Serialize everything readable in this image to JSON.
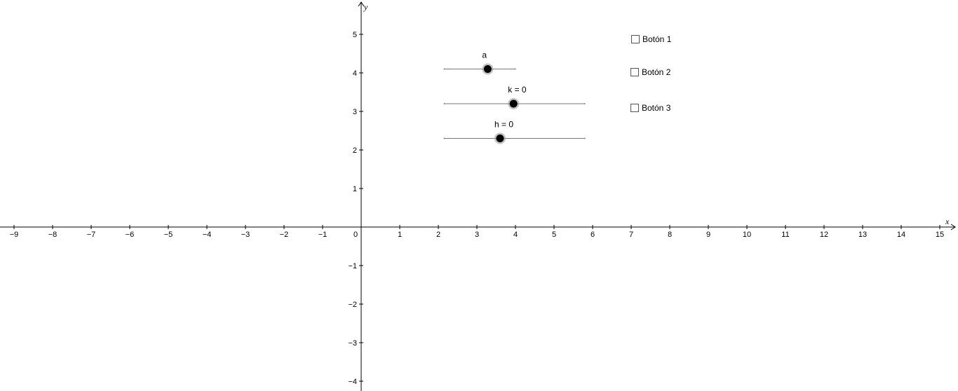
{
  "axes": {
    "x_label": "x",
    "y_label": "y",
    "x_ticks": [
      "−9",
      "−8",
      "−7",
      "−6",
      "−5",
      "−4",
      "−3",
      "−2",
      "−1",
      "0",
      "1",
      "2",
      "3",
      "4",
      "5",
      "6",
      "7",
      "8",
      "9",
      "10",
      "11",
      "12",
      "13",
      "14",
      "15"
    ],
    "y_ticks_pos": [
      "1",
      "2",
      "3",
      "4",
      "5"
    ],
    "y_ticks_neg": [
      "−1",
      "−2",
      "−3",
      "−4"
    ],
    "x_range": [
      -9.3,
      15.4
    ],
    "y_range": [
      -4.2,
      5.9
    ]
  },
  "sliders": [
    {
      "id": "a",
      "label": "a",
      "min_x": 2.15,
      "max_x": 4.0,
      "y": 4.1,
      "value_x": 3.28
    },
    {
      "id": "k",
      "label": "k = 0",
      "min_x": 2.15,
      "max_x": 5.8,
      "y": 3.2,
      "value_x": 3.95
    },
    {
      "id": "h",
      "label": "h = 0",
      "min_x": 2.15,
      "max_x": 5.8,
      "y": 2.3,
      "value_x": 3.6
    }
  ],
  "checkboxes": [
    {
      "label": "Botón 1",
      "checked": false
    },
    {
      "label": "Botón 2",
      "checked": false
    },
    {
      "label": "Botón 3",
      "checked": false
    }
  ],
  "colors": {
    "axis": "#000000",
    "slider_line": "#777777",
    "slider_point": "#000000",
    "slider_halo": "#999999"
  }
}
